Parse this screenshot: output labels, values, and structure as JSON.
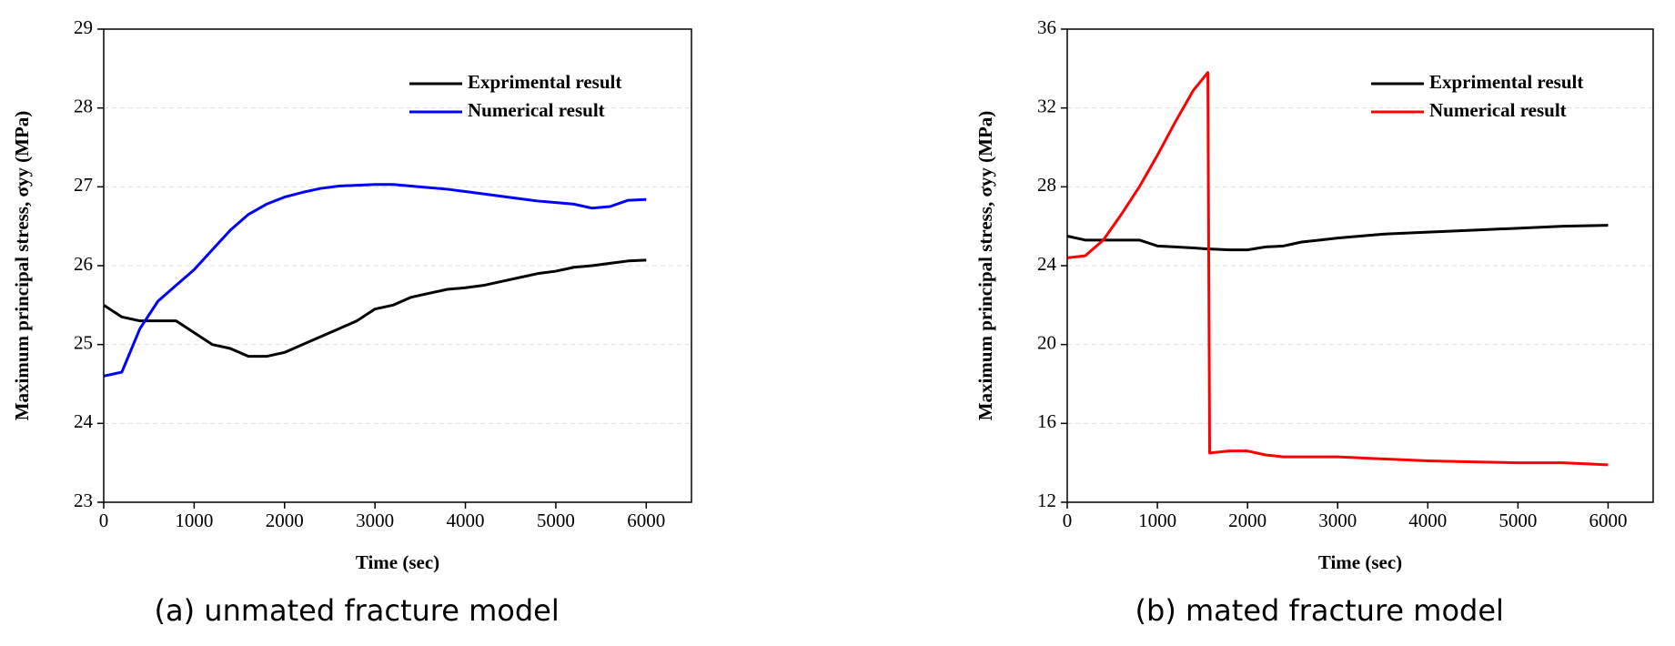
{
  "chart_data": [
    {
      "type": "line",
      "caption": "(a) unmated fracture model",
      "x_label": "Time (sec)",
      "y_label": "Maximum principal stress, σyy (MPa)",
      "x": [
        0,
        200,
        400,
        600,
        800,
        1000,
        1200,
        1400,
        1600,
        1800,
        2000,
        2200,
        2400,
        2600,
        2800,
        3000,
        3200,
        3400,
        3600,
        3800,
        4000,
        4200,
        4400,
        4600,
        4800,
        5000,
        5200,
        5400,
        5600,
        5800,
        6000
      ],
      "series": [
        {
          "name": "Exprimental result",
          "color": "#000000",
          "values": [
            25.5,
            25.35,
            25.3,
            25.3,
            25.3,
            25.15,
            25.0,
            24.95,
            24.85,
            24.85,
            24.9,
            25.0,
            25.1,
            25.2,
            25.3,
            25.45,
            25.5,
            25.6,
            25.65,
            25.7,
            25.72,
            25.75,
            25.8,
            25.85,
            25.9,
            25.93,
            25.98,
            26.0,
            26.03,
            26.06,
            26.07
          ]
        },
        {
          "name": "Numerical result",
          "color": "#0000ff",
          "values": [
            24.6,
            24.65,
            25.2,
            25.55,
            25.75,
            25.95,
            26.2,
            26.45,
            26.65,
            26.78,
            26.87,
            26.93,
            26.98,
            27.01,
            27.02,
            27.03,
            27.03,
            27.01,
            26.99,
            26.97,
            26.94,
            26.91,
            26.88,
            26.85,
            26.82,
            26.8,
            26.78,
            26.73,
            26.75,
            26.83,
            26.84
          ]
        }
      ],
      "xlim": [
        0,
        6500
      ],
      "xticks": [
        0,
        1000,
        2000,
        3000,
        4000,
        5000,
        6000
      ],
      "ylim": [
        23,
        29
      ],
      "yticks": [
        23,
        24,
        25,
        26,
        27,
        28,
        29
      ],
      "grid": true,
      "legend": "upper right"
    },
    {
      "type": "line",
      "caption": "(b) mated fracture model",
      "x_label": "Time (sec)",
      "y_label": "Maximum principal stress, σyy (MPa)",
      "x": [
        0,
        200,
        400,
        600,
        800,
        1000,
        1200,
        1400,
        1560,
        1580,
        1800,
        2000,
        2200,
        2400,
        2600,
        2800,
        3000,
        3500,
        4000,
        4500,
        5000,
        5500,
        6000
      ],
      "series": [
        {
          "name": "Exprimental result",
          "color": "#000000",
          "values": [
            25.5,
            25.3,
            25.3,
            25.3,
            25.3,
            25.0,
            24.95,
            24.9,
            24.85,
            24.85,
            24.8,
            24.8,
            24.95,
            25.0,
            25.2,
            25.3,
            25.4,
            25.6,
            25.7,
            25.8,
            25.9,
            26.0,
            26.05
          ]
        },
        {
          "name": "Numerical result",
          "color": "#ff0000",
          "values": [
            24.4,
            24.5,
            25.3,
            26.6,
            28.0,
            29.6,
            31.3,
            32.9,
            33.8,
            14.5,
            14.6,
            14.6,
            14.4,
            14.3,
            14.3,
            14.3,
            14.3,
            14.2,
            14.1,
            14.05,
            14.0,
            14.0,
            13.9
          ]
        }
      ],
      "xlim": [
        0,
        6500
      ],
      "xticks": [
        0,
        1000,
        2000,
        3000,
        4000,
        5000,
        6000
      ],
      "ylim": [
        12,
        36
      ],
      "yticks": [
        12,
        16,
        20,
        24,
        28,
        32,
        36
      ],
      "grid": true,
      "legend": "upper right"
    }
  ]
}
